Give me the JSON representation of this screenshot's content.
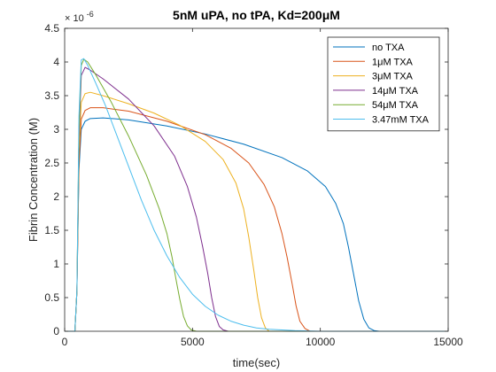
{
  "chart_data": {
    "type": "line",
    "title": "5nM uPA, no tPA, Kd=200μM",
    "xlabel": "time(sec)",
    "ylabel": "Fibrin Concentration (M)",
    "y_exponent_label": "× 10",
    "y_exponent_power": "-6",
    "xlim": [
      0,
      15000
    ],
    "ylim": [
      0,
      4.5
    ],
    "x_ticks": [
      0,
      5000,
      10000,
      15000
    ],
    "x_tick_labels": [
      "0",
      "5000",
      "10000",
      "15000"
    ],
    "y_ticks": [
      0,
      0.5,
      1,
      1.5,
      2,
      2.5,
      3,
      3.5,
      4,
      4.5
    ],
    "y_tick_labels": [
      "0",
      "0.5",
      "1",
      "1.5",
      "2",
      "2.5",
      "3",
      "3.5",
      "4",
      "4.5"
    ],
    "grid": false,
    "legend_position": "top-right",
    "series": [
      {
        "name": "no TXA",
        "color": "#0072BD",
        "x": [
          0,
          400,
          480,
          560,
          650,
          800,
          1000,
          1500,
          2500,
          4000,
          5500,
          7000,
          8500,
          9500,
          10200,
          10600,
          10900,
          11100,
          11300,
          11500,
          11700,
          11900,
          12100,
          12300,
          15000
        ],
        "y": [
          0,
          0,
          0.6,
          2.4,
          3.0,
          3.12,
          3.16,
          3.17,
          3.14,
          3.05,
          2.93,
          2.78,
          2.58,
          2.38,
          2.15,
          1.9,
          1.6,
          1.25,
          0.85,
          0.45,
          0.18,
          0.05,
          0.01,
          0,
          0
        ]
      },
      {
        "name": "1μM TXA",
        "color": "#D95319",
        "x": [
          0,
          400,
          480,
          560,
          650,
          800,
          1000,
          1500,
          2500,
          4000,
          5500,
          6500,
          7200,
          7800,
          8200,
          8500,
          8700,
          8900,
          9050,
          9200,
          9400,
          9600,
          15000
        ],
        "y": [
          0,
          0,
          0.6,
          2.5,
          3.15,
          3.28,
          3.32,
          3.32,
          3.27,
          3.12,
          2.92,
          2.72,
          2.5,
          2.18,
          1.85,
          1.45,
          1.1,
          0.7,
          0.38,
          0.15,
          0.04,
          0,
          0
        ]
      },
      {
        "name": "3μM TXA",
        "color": "#EDB120",
        "x": [
          0,
          400,
          480,
          560,
          650,
          800,
          1000,
          1500,
          2500,
          3500,
          4500,
          5500,
          6200,
          6700,
          7000,
          7200,
          7400,
          7550,
          7700,
          7850,
          8000,
          15000
        ],
        "y": [
          0,
          0,
          0.6,
          2.7,
          3.4,
          3.53,
          3.55,
          3.5,
          3.38,
          3.24,
          3.06,
          2.82,
          2.55,
          2.2,
          1.82,
          1.4,
          0.9,
          0.5,
          0.2,
          0.05,
          0,
          0
        ]
      },
      {
        "name": "14μM TXA",
        "color": "#7E2F8E",
        "x": [
          0,
          400,
          480,
          560,
          650,
          800,
          1000,
          1500,
          2500,
          3500,
          4300,
          4800,
          5150,
          5400,
          5600,
          5750,
          5900,
          6050,
          6200,
          6400,
          15000
        ],
        "y": [
          0,
          0,
          0.6,
          2.9,
          3.8,
          3.92,
          3.88,
          3.75,
          3.45,
          3.05,
          2.6,
          2.15,
          1.7,
          1.25,
          0.85,
          0.5,
          0.22,
          0.07,
          0.02,
          0,
          0
        ]
      },
      {
        "name": "54μM TXA",
        "color": "#77AC30",
        "x": [
          0,
          400,
          480,
          560,
          650,
          750,
          900,
          1200,
          1800,
          2500,
          3200,
          3700,
          4000,
          4200,
          4350,
          4500,
          4650,
          4800,
          4950,
          5150,
          15000
        ],
        "y": [
          0,
          0,
          0.6,
          3.0,
          3.95,
          4.04,
          4.0,
          3.82,
          3.42,
          2.9,
          2.32,
          1.82,
          1.45,
          1.1,
          0.78,
          0.48,
          0.22,
          0.08,
          0.02,
          0,
          0
        ]
      },
      {
        "name": "3.47mM TXA",
        "color": "#4DBEEE",
        "x": [
          0,
          400,
          480,
          560,
          650,
          750,
          900,
          1200,
          1600,
          2000,
          2500,
          3000,
          3500,
          4000,
          4500,
          5000,
          5500,
          6000,
          6500,
          7000,
          7500,
          8000,
          9000,
          10000,
          15000
        ],
        "y": [
          0,
          0,
          0.6,
          3.2,
          4.03,
          4.05,
          3.95,
          3.7,
          3.35,
          2.95,
          2.45,
          1.95,
          1.5,
          1.12,
          0.8,
          0.55,
          0.37,
          0.24,
          0.15,
          0.09,
          0.05,
          0.03,
          0.01,
          0,
          0
        ]
      }
    ]
  }
}
